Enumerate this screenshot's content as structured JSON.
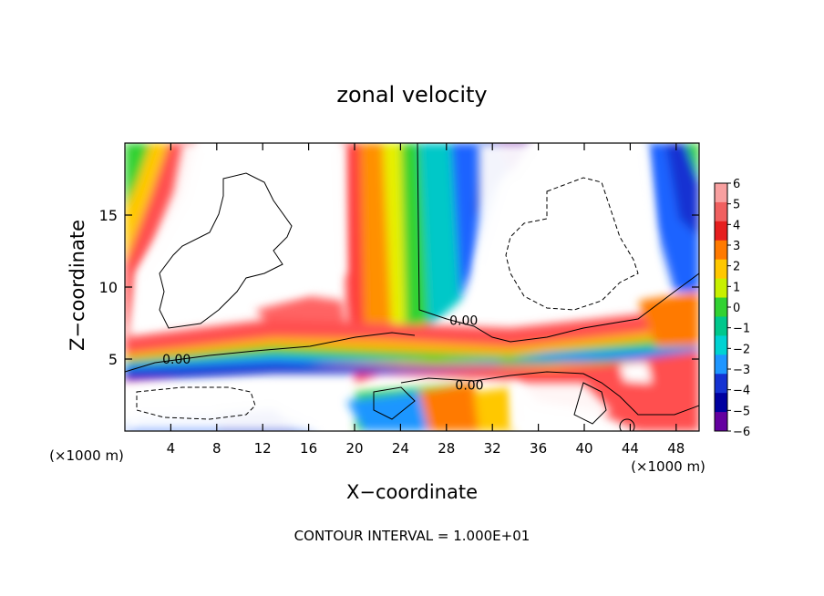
{
  "chart_data": {
    "type": "heatmap",
    "title": "zonal velocity",
    "xlabel": "X−coordinate",
    "ylabel": "Z−coordinate",
    "x_unit_left": "(×1000 m)",
    "x_unit_right": "(×1000 m)",
    "xlim": [
      0,
      50
    ],
    "ylim": [
      0,
      20
    ],
    "x_ticks": [
      4,
      8,
      12,
      16,
      20,
      24,
      28,
      32,
      36,
      40,
      44,
      48
    ],
    "y_ticks": [
      5,
      10,
      15
    ],
    "colorbar": {
      "ticks": [
        6,
        5,
        4,
        3,
        2,
        1,
        0,
        -1,
        -2,
        -3,
        -4,
        -5,
        -6
      ],
      "labels": [
        "6",
        "5",
        "4",
        "3",
        "2",
        "1",
        "0",
        "−1",
        "−2",
        "−3",
        "−4",
        "−5",
        "−6"
      ],
      "colors": [
        "#f8a0a0",
        "#f06060",
        "#e61e1e",
        "#ff7a00",
        "#ffc800",
        "#c8f000",
        "#32d232",
        "#00c88c",
        "#00d2d2",
        "#1e96ff",
        "#1432d2",
        "#0000a0",
        "#6400a0"
      ],
      "min": -6,
      "max": 6
    },
    "contour_labels": [
      {
        "text": "0.00",
        "x": 4.5,
        "z": 5.0
      },
      {
        "text": "0.00",
        "x": 29.5,
        "z": 7.7
      },
      {
        "text": "0.00",
        "x": 30.0,
        "z": 3.2
      }
    ],
    "footer": "CONTOUR INTERVAL = 1.000E+01"
  }
}
